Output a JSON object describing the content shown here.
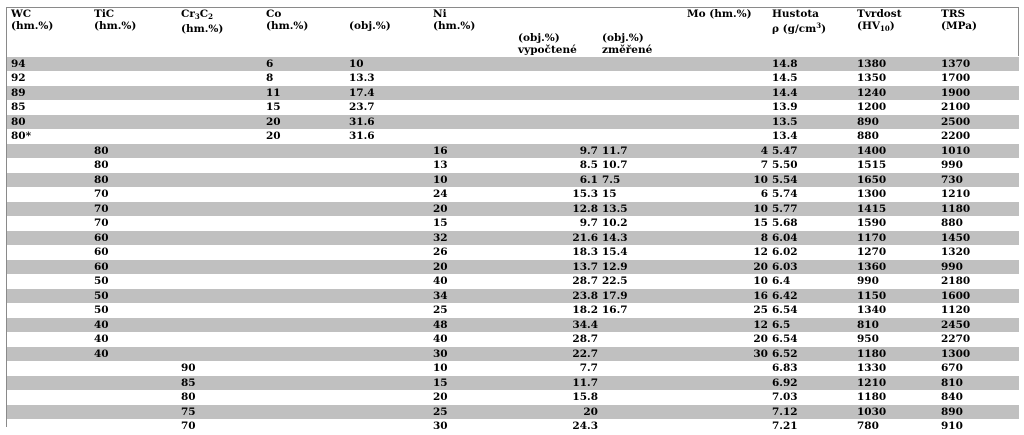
{
  "headers": {
    "wc": {
      "name": "WC",
      "unit": "(hm.%)"
    },
    "tic": {
      "name": "TiC",
      "unit": "(hm.%)"
    },
    "cr3c2": {
      "base": "Cr",
      "s1": "3",
      "mid": "C",
      "s2": "2",
      "unit": "(hm.%)"
    },
    "co": {
      "name": "Co",
      "unit": "(hm.%)"
    },
    "co_obj": {
      "unit": "(obj.%)"
    },
    "ni": {
      "name": "Ni",
      "unit": "(hm.%)"
    },
    "ni_calc": {
      "unit": "(obj.%)",
      "note": "vypočtené"
    },
    "ni_meas": {
      "unit": "(obj.%)",
      "note": "změřené"
    },
    "mo": {
      "name": "Mo (hm.%)"
    },
    "hustota": {
      "name": "Hustota",
      "unit_pre": "ρ (g/cm",
      "unit_sup": "3",
      "unit_post": ")"
    },
    "tvrdost": {
      "name": "Tvrdost",
      "unit_pre": "(HV",
      "unit_sub": "10",
      "unit_post": ")"
    },
    "trs": {
      "name": "TRS",
      "unit": "(MPa)"
    }
  },
  "rows": [
    {
      "wc": "94",
      "tic": "",
      "cr": "",
      "co": "6",
      "coobj": "10",
      "ni": "",
      "nicalc": "",
      "nimeas": "",
      "mo": "",
      "rho": "14.8",
      "hv": "1380",
      "trs": "1370"
    },
    {
      "wc": "92",
      "tic": "",
      "cr": "",
      "co": "8",
      "coobj": "13.3",
      "ni": "",
      "nicalc": "",
      "nimeas": "",
      "mo": "",
      "rho": "14.5",
      "hv": "1350",
      "trs": "1700"
    },
    {
      "wc": "89",
      "tic": "",
      "cr": "",
      "co": "11",
      "coobj": "17.4",
      "ni": "",
      "nicalc": "",
      "nimeas": "",
      "mo": "",
      "rho": "14.4",
      "hv": "1240",
      "trs": "1900"
    },
    {
      "wc": "85",
      "tic": "",
      "cr": "",
      "co": "15",
      "coobj": "23.7",
      "ni": "",
      "nicalc": "",
      "nimeas": "",
      "mo": "",
      "rho": "13.9",
      "hv": "1200",
      "trs": "2100"
    },
    {
      "wc": "80",
      "tic": "",
      "cr": "",
      "co": "20",
      "coobj": "31.6",
      "ni": "",
      "nicalc": "",
      "nimeas": "",
      "mo": "",
      "rho": "13.5",
      "hv": "890",
      "trs": "2500"
    },
    {
      "wc": "80*",
      "tic": "",
      "cr": "",
      "co": "20",
      "coobj": "31.6",
      "ni": "",
      "nicalc": "",
      "nimeas": "",
      "mo": "",
      "rho": "13.4",
      "hv": "880",
      "trs": "2200"
    },
    {
      "wc": "",
      "tic": "80",
      "cr": "",
      "co": "",
      "coobj": "",
      "ni": "16",
      "nicalc": "9.7",
      "nimeas": "11.7",
      "mo": "4",
      "rho": "5.47",
      "hv": "1400",
      "trs": "1010"
    },
    {
      "wc": "",
      "tic": "80",
      "cr": "",
      "co": "",
      "coobj": "",
      "ni": "13",
      "nicalc": "8.5",
      "nimeas": "10.7",
      "mo": "7",
      "rho": "5.50",
      "hv": "1515",
      "trs": "990"
    },
    {
      "wc": "",
      "tic": "80",
      "cr": "",
      "co": "",
      "coobj": "",
      "ni": "10",
      "nicalc": "6.1",
      "nimeas": "7.5",
      "mo": "10",
      "rho": "5.54",
      "hv": "1650",
      "trs": "730"
    },
    {
      "wc": "",
      "tic": "70",
      "cr": "",
      "co": "",
      "coobj": "",
      "ni": "24",
      "nicalc": "15.3",
      "nimeas": "15",
      "mo": "6",
      "rho": "5.74",
      "hv": "1300",
      "trs": "1210"
    },
    {
      "wc": "",
      "tic": "70",
      "cr": "",
      "co": "",
      "coobj": "",
      "ni": "20",
      "nicalc": "12.8",
      "nimeas": "13.5",
      "mo": "10",
      "rho": "5.77",
      "hv": "1415",
      "trs": "1180"
    },
    {
      "wc": "",
      "tic": "70",
      "cr": "",
      "co": "",
      "coobj": "",
      "ni": "15",
      "nicalc": "9.7",
      "nimeas": "10.2",
      "mo": "15",
      "rho": "5.68",
      "hv": "1590",
      "trs": "880"
    },
    {
      "wc": "",
      "tic": "60",
      "cr": "",
      "co": "",
      "coobj": "",
      "ni": "32",
      "nicalc": "21.6",
      "nimeas": "14.3",
      "mo": "8",
      "rho": "6.04",
      "hv": "1170",
      "trs": "1450"
    },
    {
      "wc": "",
      "tic": "60",
      "cr": "",
      "co": "",
      "coobj": "",
      "ni": "26",
      "nicalc": "18.3",
      "nimeas": "15.4",
      "mo": "12",
      "rho": "6.02",
      "hv": "1270",
      "trs": "1320"
    },
    {
      "wc": "",
      "tic": "60",
      "cr": "",
      "co": "",
      "coobj": "",
      "ni": "20",
      "nicalc": "13.7",
      "nimeas": "12.9",
      "mo": "20",
      "rho": "6.03",
      "hv": "1360",
      "trs": "990"
    },
    {
      "wc": "",
      "tic": "50",
      "cr": "",
      "co": "",
      "coobj": "",
      "ni": "40",
      "nicalc": "28.7",
      "nimeas": "22.5",
      "mo": "10",
      "rho": "6.4",
      "hv": "990",
      "trs": "2180"
    },
    {
      "wc": "",
      "tic": "50",
      "cr": "",
      "co": "",
      "coobj": "",
      "ni": "34",
      "nicalc": "23.8",
      "nimeas": "17.9",
      "mo": "16",
      "rho": "6.42",
      "hv": "1150",
      "trs": "1600"
    },
    {
      "wc": "",
      "tic": "50",
      "cr": "",
      "co": "",
      "coobj": "",
      "ni": "25",
      "nicalc": "18.2",
      "nimeas": "16.7",
      "mo": "25",
      "rho": "6.54",
      "hv": "1340",
      "trs": "1120"
    },
    {
      "wc": "",
      "tic": "40",
      "cr": "",
      "co": "",
      "coobj": "",
      "ni": "48",
      "nicalc": "34.4",
      "nimeas": "",
      "mo": "12",
      "rho": "6.5",
      "hv": "810",
      "trs": "2450"
    },
    {
      "wc": "",
      "tic": "40",
      "cr": "",
      "co": "",
      "coobj": "",
      "ni": "40",
      "nicalc": "28.7",
      "nimeas": "",
      "mo": "20",
      "rho": "6.54",
      "hv": "950",
      "trs": "2270"
    },
    {
      "wc": "",
      "tic": "40",
      "cr": "",
      "co": "",
      "coobj": "",
      "ni": "30",
      "nicalc": "22.7",
      "nimeas": "",
      "mo": "30",
      "rho": "6.52",
      "hv": "1180",
      "trs": "1300"
    },
    {
      "wc": "",
      "tic": "",
      "cr": "90",
      "co": "",
      "coobj": "",
      "ni": "10",
      "nicalc": "7.7",
      "nimeas": "",
      "mo": "",
      "rho": "6.83",
      "hv": "1330",
      "trs": "670"
    },
    {
      "wc": "",
      "tic": "",
      "cr": "85",
      "co": "",
      "coobj": "",
      "ni": "15",
      "nicalc": "11.7",
      "nimeas": "",
      "mo": "",
      "rho": "6.92",
      "hv": "1210",
      "trs": "810"
    },
    {
      "wc": "",
      "tic": "",
      "cr": "80",
      "co": "",
      "coobj": "",
      "ni": "20",
      "nicalc": "15.8",
      "nimeas": "",
      "mo": "",
      "rho": "7.03",
      "hv": "1180",
      "trs": "840"
    },
    {
      "wc": "",
      "tic": "",
      "cr": "75",
      "co": "",
      "coobj": "",
      "ni": "25",
      "nicalc": "20",
      "nimeas": "",
      "mo": "",
      "rho": "7.12",
      "hv": "1030",
      "trs": "890"
    },
    {
      "wc": "",
      "tic": "",
      "cr": "70",
      "co": "",
      "coobj": "",
      "ni": "30",
      "nicalc": "24.3",
      "nimeas": "",
      "mo": "",
      "rho": "7.21",
      "hv": "780",
      "trs": "910"
    }
  ],
  "colors": {
    "shade": "#c0c0c0",
    "plain": "#ffffff"
  }
}
